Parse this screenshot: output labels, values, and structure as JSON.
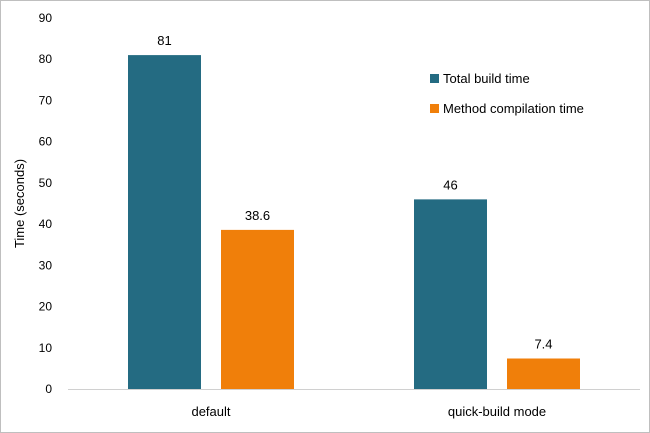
{
  "chart_data": {
    "type": "bar",
    "title": "",
    "xlabel": "",
    "ylabel": "Time (seconds)",
    "ylim": [
      0,
      90
    ],
    "yticks": [
      0,
      10,
      20,
      30,
      40,
      50,
      60,
      70,
      80,
      90
    ],
    "categories": [
      "default",
      "quick-build mode"
    ],
    "series": [
      {
        "name": "Total build time",
        "values": [
          81,
          46
        ],
        "labels": [
          "81",
          "46"
        ],
        "color": "#246b82"
      },
      {
        "name": "Method compilation time",
        "values": [
          38.6,
          7.4
        ],
        "labels": [
          "38.6",
          "7.4"
        ],
        "color": "#f07f0a"
      }
    ],
    "grid": false,
    "legend_position": "right"
  }
}
